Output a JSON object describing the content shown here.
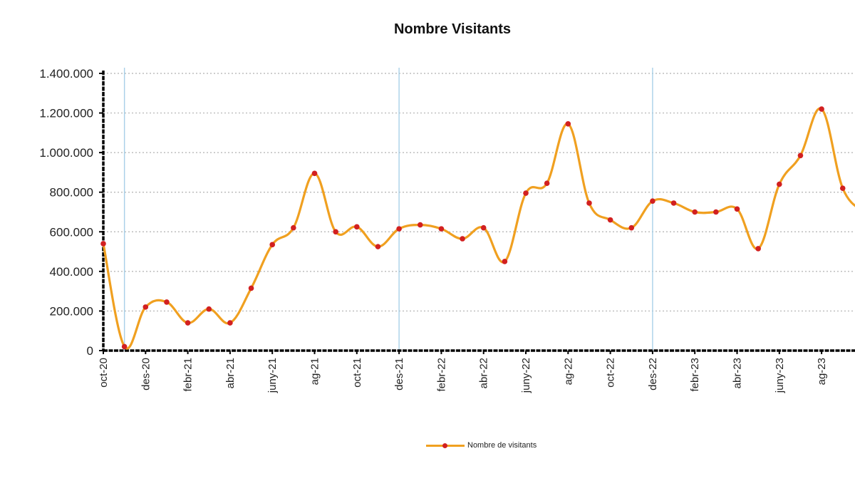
{
  "chart_data": {
    "type": "line",
    "title": "Nombre Visitants",
    "xlabel": "",
    "ylabel": "",
    "ylim": [
      0,
      1400000
    ],
    "yticks": [
      "0",
      "200.000",
      "400.000",
      "600.000",
      "800.000",
      "1.000.000",
      "1.200.000",
      "1.400.000"
    ],
    "ytick_values": [
      0,
      200000,
      400000,
      600000,
      800000,
      1000000,
      1200000,
      1400000
    ],
    "xtick_labels": [
      "oct-20",
      "des-20",
      "febr-21",
      "abr-21",
      "juny-21",
      "ag-21",
      "oct-21",
      "des-21",
      "febr-22",
      "abr-22",
      "juny-22",
      "ag-22",
      "oct-22",
      "des-22",
      "febr-23",
      "abr-23",
      "juny-23",
      "ag-23"
    ],
    "categories": [
      "oct-20",
      "nov-20",
      "des-20",
      "gen-21",
      "febr-21",
      "març-21",
      "abr-21",
      "maig-21",
      "juny-21",
      "jul-21",
      "ag-21",
      "set-21",
      "oct-21",
      "nov-21",
      "des-21",
      "gen-22",
      "febr-22",
      "març-22",
      "abr-22",
      "maig-22",
      "juny-22",
      "jul-22",
      "ag-22",
      "set-22",
      "oct-22",
      "nov-22",
      "des-22",
      "gen-23",
      "febr-23",
      "març-23",
      "abr-23",
      "maig-23",
      "juny-23",
      "jul-23",
      "ag-23",
      "set-23",
      "oct-23"
    ],
    "series": [
      {
        "name": "Nombre de visitants",
        "values": [
          540000,
          20000,
          220000,
          245000,
          140000,
          210000,
          140000,
          315000,
          535000,
          620000,
          895000,
          600000,
          625000,
          525000,
          615000,
          635000,
          615000,
          565000,
          620000,
          450000,
          795000,
          845000,
          1145000,
          745000,
          660000,
          620000,
          755000,
          745000,
          700000,
          700000,
          715000,
          515000,
          840000,
          985000,
          1220000,
          820000,
          700000
        ]
      }
    ],
    "gridlines": "horizontal-dotted",
    "vertical_markers_at": [
      "nov-20",
      "des-21",
      "des-22"
    ],
    "legend_position": "bottom-center",
    "colors": {
      "line": "#f0a020",
      "marker": "#d22020",
      "grid": "#b0b0b0",
      "marker_lines": "#a8d0e8",
      "axis": "#000000"
    }
  }
}
